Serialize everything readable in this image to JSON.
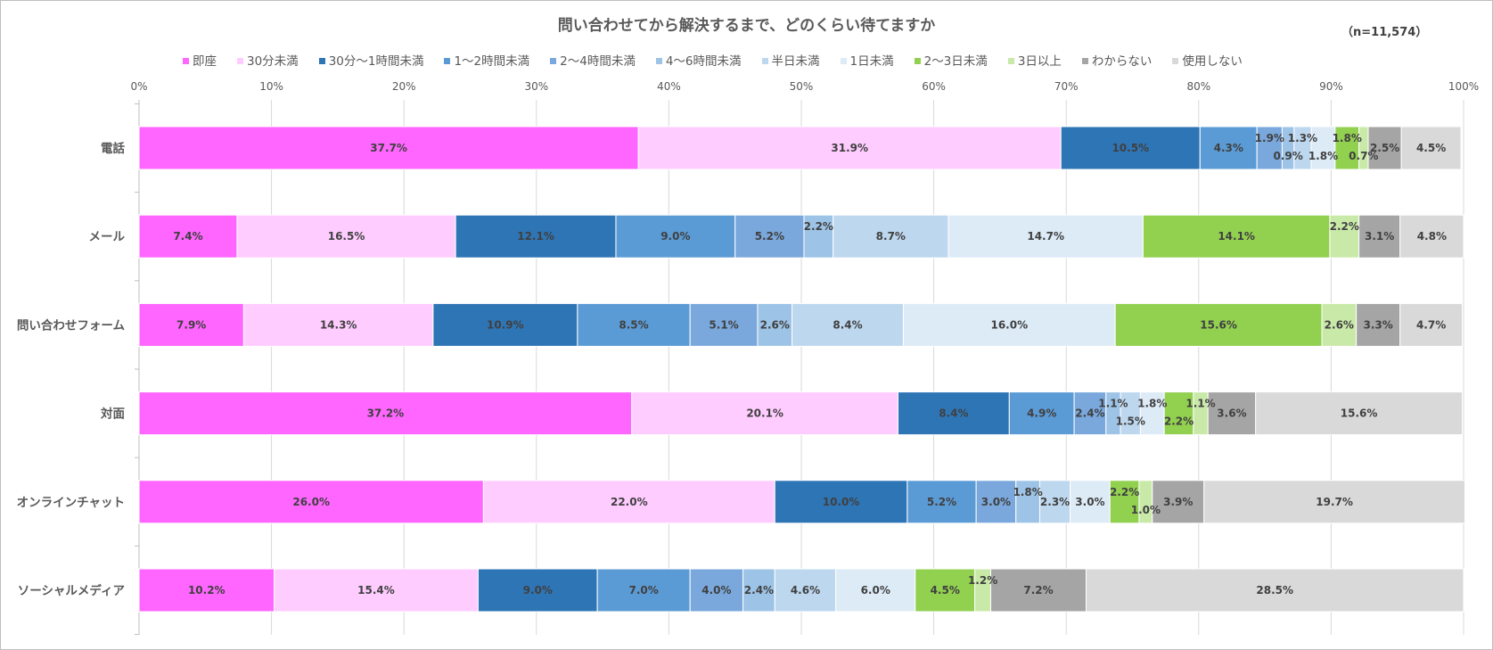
{
  "chart_data": {
    "type": "bar",
    "orientation": "horizontal",
    "stacked": true,
    "title": "問い合わせてから解決するまで、どのくらい待てますか",
    "note": "（n=11,574）",
    "xlim": [
      0,
      100
    ],
    "x_ticks": [
      "0%",
      "10%",
      "20%",
      "30%",
      "40%",
      "50%",
      "60%",
      "70%",
      "80%",
      "90%",
      "100%"
    ],
    "grid": true,
    "legend_position": "top",
    "categories": [
      "電話",
      "メール",
      "問い合わせフォーム",
      "対面",
      "オンラインチャット",
      "ソーシャルメディア"
    ],
    "series": [
      {
        "name": "即座",
        "color": "#ff66ff",
        "values": [
          37.7,
          7.4,
          7.9,
          37.2,
          26.0,
          10.2
        ]
      },
      {
        "name": "30分未満",
        "color": "#ffccff",
        "values": [
          31.9,
          16.5,
          14.3,
          20.1,
          22.0,
          15.4
        ]
      },
      {
        "name": "30分〜1時間未満",
        "color": "#2e75b6",
        "values": [
          10.5,
          12.1,
          10.9,
          8.4,
          10.0,
          9.0
        ]
      },
      {
        "name": "1〜2時間未満",
        "color": "#5b9bd5",
        "values": [
          4.3,
          9.0,
          8.5,
          4.9,
          5.2,
          7.0
        ]
      },
      {
        "name": "2〜4時間未満",
        "color": "#7aa8dc",
        "values": [
          1.9,
          5.2,
          5.1,
          2.4,
          3.0,
          4.0
        ]
      },
      {
        "name": "4〜6時間未満",
        "color": "#9dc3e6",
        "values": [
          0.9,
          2.2,
          2.6,
          1.1,
          1.8,
          2.4
        ]
      },
      {
        "name": "半日未満",
        "color": "#bdd7ee",
        "values": [
          1.3,
          8.7,
          8.4,
          1.5,
          2.3,
          4.6
        ]
      },
      {
        "name": "1日未満",
        "color": "#ddebf7",
        "values": [
          1.8,
          14.7,
          16.0,
          1.8,
          3.0,
          6.0
        ]
      },
      {
        "name": "2〜3日未満",
        "color": "#92d050",
        "values": [
          1.8,
          14.1,
          15.6,
          2.2,
          2.2,
          4.5
        ]
      },
      {
        "name": "3日以上",
        "color": "#c9e9a9",
        "values": [
          0.7,
          2.2,
          2.6,
          1.1,
          1.0,
          1.2
        ]
      },
      {
        "name": "わからない",
        "color": "#a5a5a5",
        "values": [
          2.5,
          3.1,
          3.3,
          3.6,
          3.9,
          7.2
        ]
      },
      {
        "name": "使用しない",
        "color": "#d9d9d9",
        "values": [
          4.5,
          4.8,
          4.7,
          15.6,
          19.7,
          28.5
        ]
      }
    ]
  }
}
